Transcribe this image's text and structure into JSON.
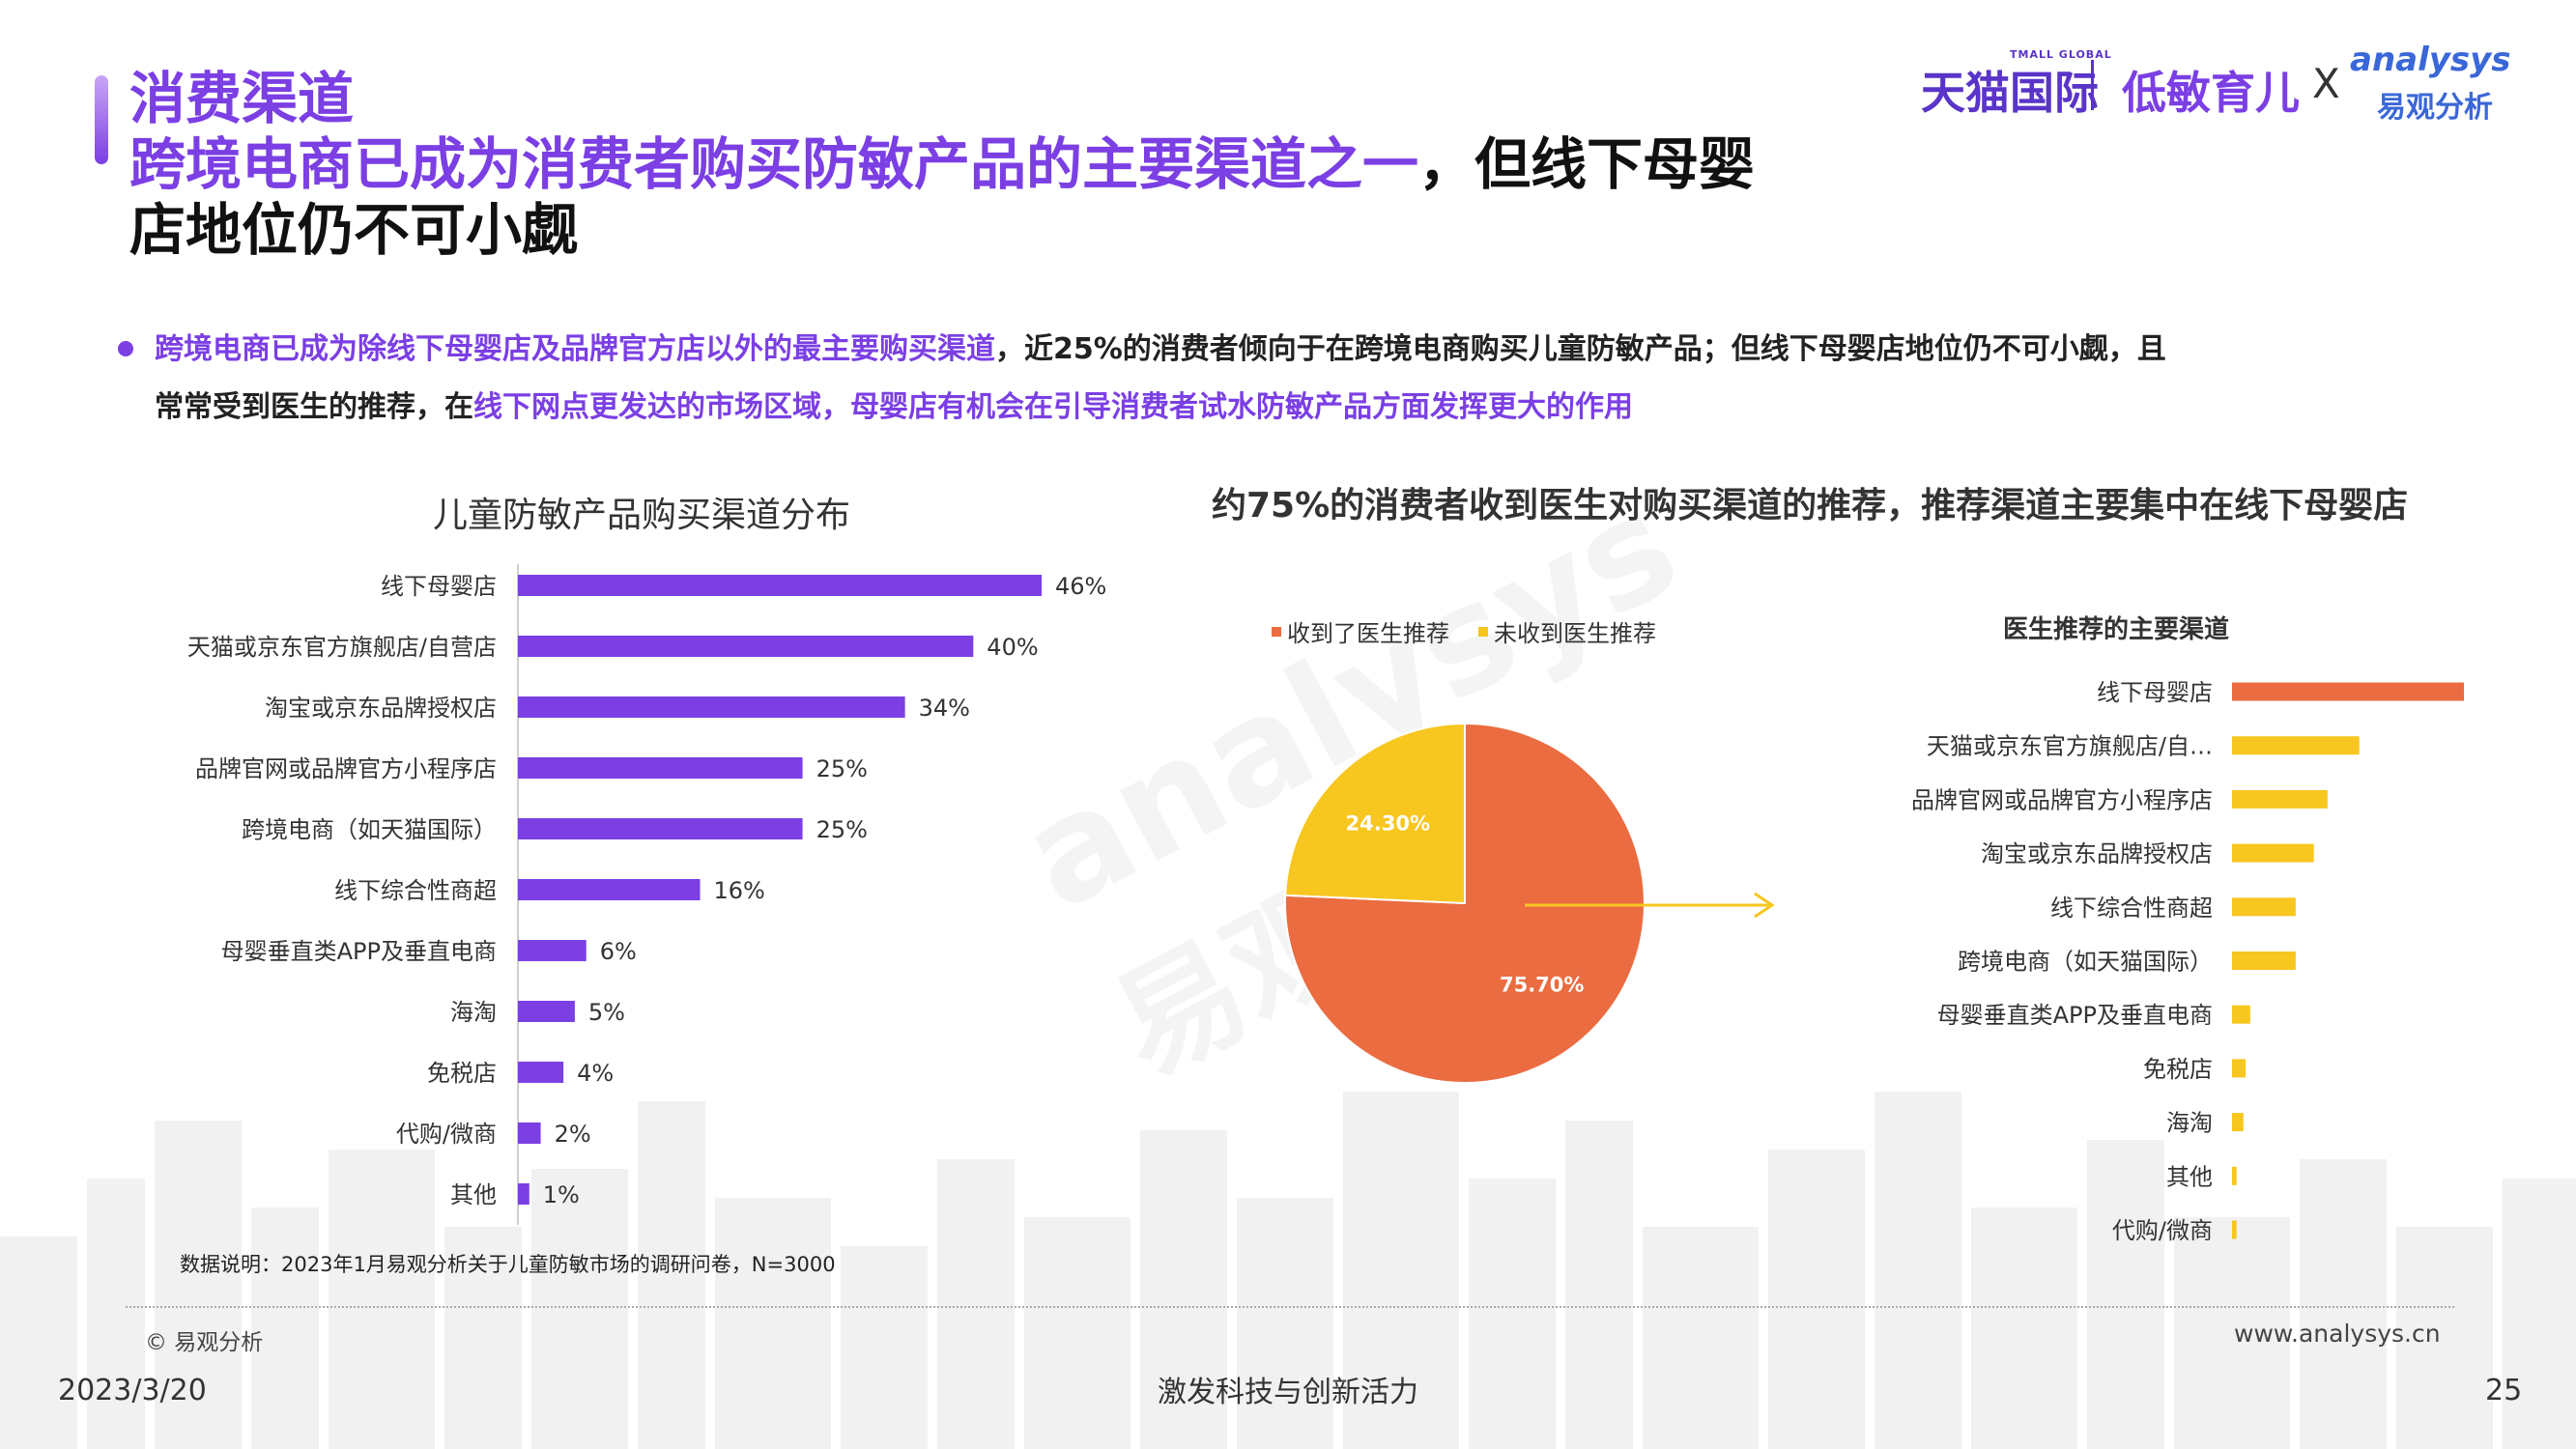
{
  "header": {
    "section": "消费渠道",
    "headline_highlight": "跨境电商已成为消费者购买防敏产品的主要渠道之一",
    "headline_rest_line1": "，但线下母婴",
    "headline_line2": "店地位仍不可小觑",
    "logo_tmall": "天猫国际",
    "logo_tmall_small": "TMALL GLOBAL",
    "logo_lowsens": "低敏育儿",
    "logo_x": "X",
    "logo_analysys": "analysys",
    "logo_analysys_cn": "易观分析"
  },
  "bullet": {
    "l1_highlight": "跨境电商已成为除线下母婴店及品牌官方店以外的最主要购买渠道",
    "l1_rest": "，近25%的消费者倾向于在跨境电商购买儿童防敏产品；但线下母婴店地位仍不可小觑，且",
    "l2_a": "常常受到医生的推荐，在",
    "l2_highlight": "线下网点更发达的市场区域，母婴店有机会在引导消费者试水防敏产品方面发挥更大的作用"
  },
  "left_chart_title": "儿童防敏产品购买渠道分布",
  "right_title": "约75%的消费者收到医生对购买渠道的推荐，推荐渠道主要集中在线下母婴店",
  "chart_data": [
    {
      "type": "bar",
      "orientation": "horizontal",
      "title": "儿童防敏产品购买渠道分布",
      "categories": [
        "线下母婴店",
        "天猫或京东官方旗舰店/自营店",
        "淘宝或京东品牌授权店",
        "品牌官网或品牌官方小程序店",
        "跨境电商（如天猫国际）",
        "线下综合性商超",
        "母婴垂直类APP及垂直电商",
        "海淘",
        "免税店",
        "代购/微商",
        "其他"
      ],
      "values": [
        46,
        40,
        34,
        25,
        25,
        16,
        6,
        5,
        4,
        2,
        1
      ],
      "labels": [
        "46%",
        "40%",
        "34%",
        "25%",
        "25%",
        "16%",
        "6%",
        "5%",
        "4%",
        "2%",
        "1%"
      ],
      "unit": "%",
      "color": "#7b3fe4"
    },
    {
      "type": "pie",
      "legend": [
        "收到了医生推荐",
        "未收到医生推荐"
      ],
      "values": [
        75.7,
        24.3
      ],
      "labels": [
        "75.70%",
        "24.30%"
      ],
      "colors": [
        "#ea6c40",
        "#f7c61f"
      ],
      "legend_position": "top"
    },
    {
      "type": "bar",
      "orientation": "horizontal",
      "title": "医生推荐的主要渠道",
      "categories": [
        "线下母婴店",
        "天猫或京东官方旗舰店/自…",
        "品牌官网或品牌官方小程序店",
        "淘宝或京东品牌授权店",
        "线下综合性商超",
        "跨境电商（如天猫国际）",
        "母婴垂直类APP及垂直电商",
        "免税店",
        "海淘",
        "其他",
        "代购/微商"
      ],
      "values": [
        51,
        28,
        21,
        18,
        14,
        14,
        4,
        3,
        2.5,
        1,
        1
      ],
      "colors": [
        "#ea6c40",
        "#f7c61f",
        "#f7c61f",
        "#f7c61f",
        "#f7c61f",
        "#f7c61f",
        "#f7c61f",
        "#f7c61f",
        "#f7c61f",
        "#f7c61f",
        "#f7c61f"
      ],
      "value_labels_shown": false
    }
  ],
  "footer": {
    "note": "数据说明：2023年1月易观分析关于儿童防敏市场的调研问卷，N=3000",
    "copyright": "© 易观分析",
    "website": "www.analysys.cn",
    "date": "2023/3/20",
    "slogan": "激发科技与创新活力",
    "page": "25"
  }
}
